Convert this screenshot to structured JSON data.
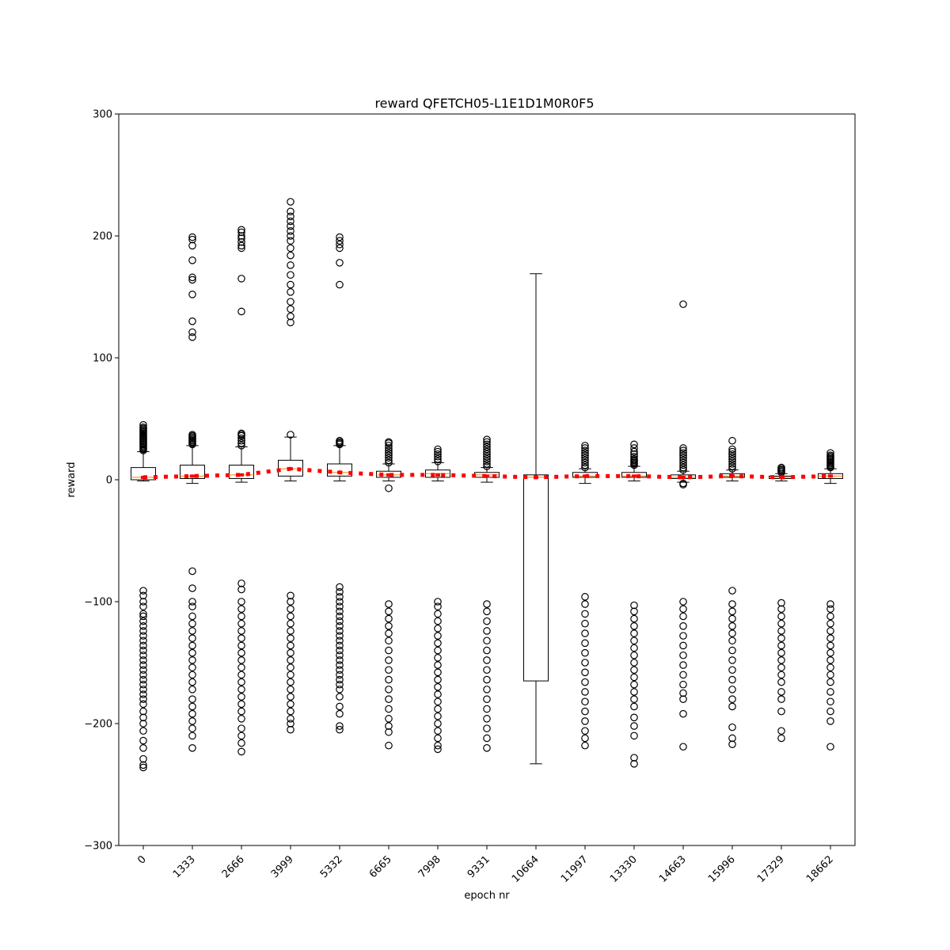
{
  "chart_data": {
    "type": "box",
    "title": "reward QFETCH05-L1E1D1M0R0F5",
    "xlabel": "epoch nr",
    "ylabel": "reward",
    "ylim": [
      -300,
      300
    ],
    "yticks": [
      -300,
      -200,
      -100,
      0,
      100,
      200,
      300
    ],
    "ytick_labels": [
      "−300",
      "−200",
      "−100",
      "0",
      "100",
      "200",
      "300"
    ],
    "categories": [
      "0",
      "1333",
      "2666",
      "3999",
      "5332",
      "6665",
      "7998",
      "9331",
      "10664",
      "11997",
      "13330",
      "14663",
      "15996",
      "17329",
      "18662"
    ],
    "grid": false,
    "boxes": [
      {
        "epoch": "0",
        "whisker_low": -1,
        "q1": 0,
        "median": 2,
        "q3": 10,
        "whisker_high": 23,
        "outliers_high": [
          24,
          25,
          26,
          27,
          28,
          29,
          30,
          31,
          32,
          33,
          34,
          35,
          36,
          37,
          38,
          39,
          40,
          41,
          42,
          43,
          45
        ],
        "outliers_low": [
          -91,
          -95,
          -100,
          -104,
          -110,
          -112,
          -116,
          -120,
          -124,
          -128,
          -132,
          -136,
          -140,
          -144,
          -148,
          -152,
          -156,
          -160,
          -164,
          -168,
          -172,
          -176,
          -180,
          -184,
          -190,
          -195,
          -200,
          -206,
          -214,
          -220,
          -229,
          -234,
          -236
        ]
      },
      {
        "epoch": "1333",
        "whisker_low": -3,
        "q1": 1,
        "median": 3,
        "q3": 12,
        "whisker_high": 28,
        "outliers_high": [
          29,
          30,
          31,
          32,
          33,
          34,
          35,
          36,
          37,
          117,
          121,
          130,
          152,
          164,
          166,
          180,
          192,
          197,
          199
        ],
        "outliers_low": [
          -75,
          -89,
          -100,
          -104,
          -112,
          -118,
          -124,
          -130,
          -136,
          -142,
          -148,
          -154,
          -160,
          -166,
          -172,
          -180,
          -186,
          -192,
          -198,
          -204,
          -210,
          -220
        ]
      },
      {
        "epoch": "2666",
        "whisker_low": -2,
        "q1": 1,
        "median": 4,
        "q3": 12,
        "whisker_high": 27,
        "outliers_high": [
          28,
          30,
          32,
          34,
          36,
          37,
          38,
          138,
          165,
          190,
          192,
          195,
          198,
          200,
          203,
          205
        ],
        "outliers_low": [
          -85,
          -90,
          -100,
          -106,
          -112,
          -118,
          -124,
          -130,
          -136,
          -142,
          -148,
          -154,
          -160,
          -166,
          -172,
          -178,
          -184,
          -190,
          -196,
          -204,
          -210,
          -216,
          -223
        ]
      },
      {
        "epoch": "3999",
        "whisker_low": -1,
        "q1": 3,
        "median": 9,
        "q3": 16,
        "whisker_high": 35,
        "outliers_high": [
          37,
          129,
          134,
          140,
          146,
          154,
          160,
          168,
          176,
          184,
          190,
          196,
          200,
          204,
          208,
          212,
          216,
          220,
          228
        ],
        "outliers_low": [
          -95,
          -100,
          -106,
          -112,
          -118,
          -124,
          -130,
          -136,
          -142,
          -148,
          -154,
          -160,
          -166,
          -172,
          -178,
          -184,
          -190,
          -196,
          -200,
          -205
        ]
      },
      {
        "epoch": "5332",
        "whisker_low": -1,
        "q1": 3,
        "median": 6,
        "q3": 13,
        "whisker_high": 28,
        "outliers_high": [
          29,
          30,
          31,
          32,
          160,
          178,
          190,
          193,
          196,
          199
        ],
        "outliers_low": [
          -88,
          -92,
          -96,
          -100,
          -104,
          -108,
          -112,
          -116,
          -120,
          -124,
          -128,
          -132,
          -136,
          -140,
          -144,
          -148,
          -152,
          -156,
          -160,
          -164,
          -168,
          -172,
          -178,
          -186,
          -192,
          -202,
          -205
        ]
      },
      {
        "epoch": "6665",
        "whisker_low": -1,
        "q1": 2,
        "median": 4,
        "q3": 7,
        "whisker_high": 13,
        "outliers_high": [
          14,
          16,
          18,
          20,
          22,
          24,
          26,
          28,
          30,
          31
        ],
        "outliers_low": [
          -7,
          -102,
          -108,
          -114,
          -120,
          -126,
          -132,
          -140,
          -148,
          -156,
          -164,
          -172,
          -180,
          -188,
          -196,
          -202,
          -207,
          -218
        ]
      },
      {
        "epoch": "7998",
        "whisker_low": -1,
        "q1": 2,
        "median": 5,
        "q3": 8,
        "whisker_high": 14,
        "outliers_high": [
          15,
          17,
          19,
          21,
          23,
          25
        ],
        "outliers_low": [
          -100,
          -104,
          -110,
          -116,
          -122,
          -128,
          -134,
          -140,
          -146,
          -152,
          -158,
          -164,
          -170,
          -176,
          -182,
          -188,
          -194,
          -200,
          -206,
          -212,
          -218,
          -221
        ]
      },
      {
        "epoch": "9331",
        "whisker_low": -2,
        "q1": 2,
        "median": 4,
        "q3": 6,
        "whisker_high": 10,
        "outliers_high": [
          11,
          13,
          15,
          17,
          19,
          21,
          23,
          25,
          27,
          29,
          31,
          33
        ],
        "outliers_low": [
          -102,
          -108,
          -116,
          -124,
          -132,
          -140,
          -148,
          -156,
          -164,
          -172,
          -180,
          -188,
          -196,
          -204,
          -212,
          -220
        ]
      },
      {
        "epoch": "10664",
        "whisker_low": -233,
        "q1": -165,
        "median": 2,
        "q3": 4,
        "whisker_high": 169,
        "outliers_high": [],
        "outliers_low": []
      },
      {
        "epoch": "11997",
        "whisker_low": -3,
        "q1": 2,
        "median": 3,
        "q3": 6,
        "whisker_high": 9,
        "outliers_high": [
          10,
          12,
          14,
          16,
          18,
          20,
          22,
          24,
          26,
          28
        ],
        "outliers_low": [
          -96,
          -102,
          -110,
          -118,
          -126,
          -134,
          -142,
          -150,
          -158,
          -166,
          -174,
          -182,
          -190,
          -198,
          -206,
          -212,
          -218
        ]
      },
      {
        "epoch": "13330",
        "whisker_low": -1,
        "q1": 2,
        "median": 3,
        "q3": 6,
        "whisker_high": 11,
        "outliers_high": [
          12,
          13,
          14,
          15,
          16,
          17,
          19,
          21,
          23,
          26,
          29
        ],
        "outliers_low": [
          -103,
          -108,
          -114,
          -120,
          -126,
          -132,
          -138,
          -144,
          -150,
          -156,
          -162,
          -168,
          -174,
          -180,
          -186,
          -195,
          -202,
          -210,
          -228,
          -233
        ]
      },
      {
        "epoch": "14663",
        "whisker_low": -2,
        "q1": 1,
        "median": 2,
        "q3": 4,
        "whisker_high": 7,
        "outliers_high": [
          8,
          10,
          12,
          14,
          16,
          18,
          20,
          22,
          24,
          26,
          144
        ],
        "outliers_low": [
          -3,
          -4,
          -100,
          -106,
          -112,
          -120,
          -128,
          -136,
          -144,
          -152,
          -160,
          -168,
          -175,
          -180,
          -192,
          -219
        ]
      },
      {
        "epoch": "15996",
        "whisker_low": -1,
        "q1": 2,
        "median": 3,
        "q3": 5,
        "whisker_high": 8,
        "outliers_high": [
          9,
          11,
          13,
          15,
          17,
          19,
          21,
          23,
          25,
          32
        ],
        "outliers_low": [
          -91,
          -102,
          -108,
          -114,
          -120,
          -126,
          -132,
          -140,
          -148,
          -156,
          -164,
          -172,
          -180,
          -186,
          -203,
          -212,
          -217
        ]
      },
      {
        "epoch": "17329",
        "whisker_low": -1,
        "q1": 1,
        "median": 2,
        "q3": 3,
        "whisker_high": 5,
        "outliers_high": [
          6,
          7,
          8,
          9,
          10
        ],
        "outliers_low": [
          -101,
          -106,
          -112,
          -118,
          -124,
          -130,
          -136,
          -142,
          -148,
          -154,
          -160,
          -166,
          -174,
          -180,
          -190,
          -206,
          -212
        ]
      },
      {
        "epoch": "18662",
        "whisker_low": -3,
        "q1": 1,
        "median": 3,
        "q3": 5,
        "whisker_high": 9,
        "outliers_high": [
          10,
          11,
          12,
          13,
          14,
          15,
          16,
          17,
          18,
          19,
          20,
          22
        ],
        "outliers_low": [
          -102,
          -106,
          -112,
          -118,
          -124,
          -130,
          -136,
          -142,
          -148,
          -154,
          -160,
          -166,
          -174,
          -182,
          -190,
          -198,
          -219
        ]
      }
    ],
    "mean_series": {
      "style": "dotted",
      "color": "#ff0000",
      "values": [
        2,
        3,
        4,
        9,
        6,
        4,
        4,
        3,
        2,
        3,
        3,
        2,
        3,
        2,
        3
      ]
    },
    "colors": {
      "box": "#000000",
      "median": "#ff7f0e",
      "mean_line": "#ff0000"
    }
  }
}
